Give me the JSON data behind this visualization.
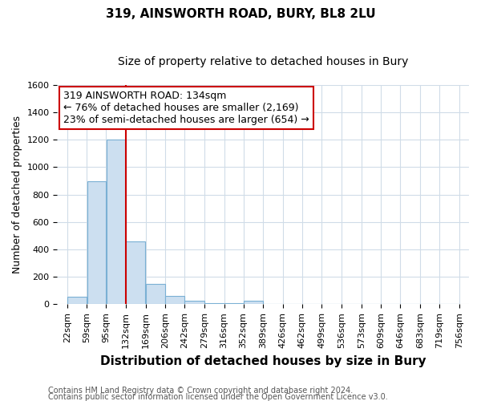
{
  "title": "319, AINSWORTH ROAD, BURY, BL8 2LU",
  "subtitle": "Size of property relative to detached houses in Bury",
  "xlabel": "Distribution of detached houses by size in Bury",
  "ylabel": "Number of detached properties",
  "footnote1": "Contains HM Land Registry data © Crown copyright and database right 2024.",
  "footnote2": "Contains public sector information licensed under the Open Government Licence v3.0.",
  "bins": [
    22,
    59,
    95,
    132,
    169,
    206,
    242,
    279,
    316,
    352,
    389,
    426,
    462,
    499,
    536,
    573,
    609,
    646,
    683,
    719,
    756
  ],
  "counts": [
    55,
    900,
    1200,
    460,
    150,
    60,
    25,
    10,
    5,
    25,
    0,
    0,
    0,
    0,
    0,
    0,
    0,
    0,
    0,
    0
  ],
  "bar_color": "#ccdff0",
  "bar_edge_color": "#7ab0d4",
  "property_line_x": 132,
  "property_line_color": "#cc0000",
  "annotation_line1": "319 AINSWORTH ROAD: 134sqm",
  "annotation_line2": "← 76% of detached houses are smaller (2,169)",
  "annotation_line3": "23% of semi-detached houses are larger (654) →",
  "annotation_box_color": "#ffffff",
  "annotation_box_edge_color": "#cc0000",
  "ylim": [
    0,
    1600
  ],
  "yticks": [
    0,
    200,
    400,
    600,
    800,
    1000,
    1200,
    1400,
    1600
  ],
  "tick_labels": [
    "22sqm",
    "59sqm",
    "95sqm",
    "132sqm",
    "169sqm",
    "206sqm",
    "242sqm",
    "279sqm",
    "316sqm",
    "352sqm",
    "389sqm",
    "426sqm",
    "462sqm",
    "499sqm",
    "536sqm",
    "573sqm",
    "609sqm",
    "646sqm",
    "683sqm",
    "719sqm",
    "756sqm"
  ],
  "title_fontsize": 11,
  "subtitle_fontsize": 10,
  "xlabel_fontsize": 11,
  "ylabel_fontsize": 9,
  "tick_fontsize": 8,
  "annotation_fontsize": 9,
  "footnote_fontsize": 7,
  "bg_color": "#ffffff",
  "grid_color": "#d0dce8"
}
